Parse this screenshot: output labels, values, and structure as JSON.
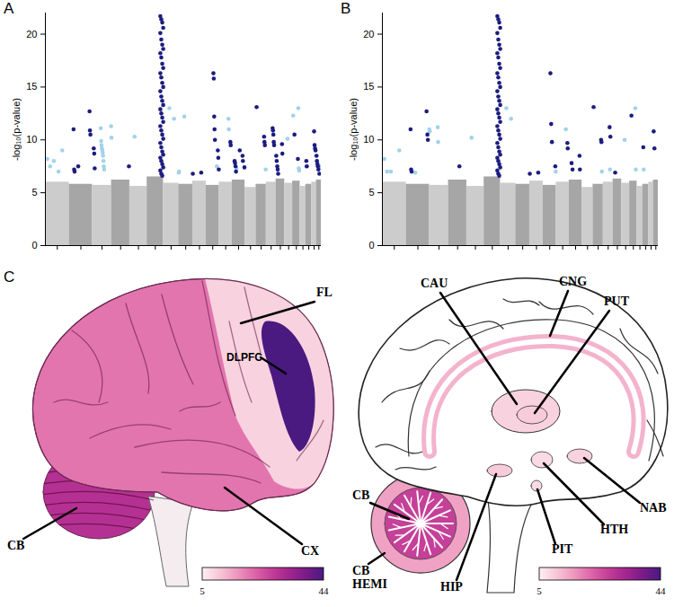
{
  "chart_data": [
    {
      "type": "scatter",
      "title": "A",
      "y_label": "-log₁₀(p-value)",
      "xlim": [
        0,
        2880
      ],
      "ylim": [
        0,
        22
      ],
      "xticks": [
        124.5,
        370.5,
        591,
        785.5,
        971.5,
        1147.5,
        1312.5,
        1465,
        1608.5,
        1747,
        1882.5,
        2017,
        2141.5,
        2252.5,
        2357,
        2453,
        2539.5,
        2620,
        2688.5,
        2749.5,
        2805,
        2854.5
      ],
      "yticks": [
        0,
        5,
        10,
        15,
        20
      ],
      "tick_labels": "y",
      "grid": false,
      "chromosome_bounds": [
        0,
        249,
        492,
        690,
        881,
        1062,
        1233,
        1392,
        1538,
        1679,
        1815,
        1950,
        2084,
        2199,
        2306,
        2408,
        2498,
        2581,
        2659,
        2718,
        2781,
        2829,
        2880
      ],
      "series": [
        {
          "type": "bar",
          "colors": [
            "#cccccc",
            "#a6a6a6",
            "#cccccc",
            "#a6a6a6",
            "#cccccc",
            "#a6a6a6",
            "#cccccc",
            "#a6a6a6",
            "#cccccc",
            "#a6a6a6",
            "#cccccc",
            "#a6a6a6",
            "#cccccc",
            "#a6a6a6",
            "#cccccc",
            "#a6a6a6",
            "#cccccc",
            "#a6a6a6",
            "#cccccc",
            "#a6a6a6",
            "#cccccc",
            "#a6a6a6"
          ],
          "values": [
            6.0,
            5.8,
            5.7,
            6.2,
            5.6,
            6.5,
            5.9,
            5.8,
            6.1,
            5.7,
            6.0,
            6.2,
            5.5,
            5.8,
            6.0,
            6.3,
            5.9,
            6.1,
            5.6,
            5.8,
            6.0,
            6.2
          ]
        },
        {
          "type": "scatter",
          "color": "#a3d2ea",
          "x": [
            20,
            49,
            88,
            137,
            176,
            578,
            582,
            586,
            590,
            594,
            598,
            602,
            606,
            610,
            614,
            686,
            690,
            931,
            1294,
            1343,
            1392,
            1396,
            1450,
            1790,
            1911,
            1915,
            1995,
            2300,
            2528,
            2587,
            2640,
            2645,
            2650,
            2732,
            2862
          ],
          "values": [
            8.2,
            7.5,
            8.0,
            7.0,
            9.0,
            11.1,
            9.9,
            9.5,
            9.2,
            9.0,
            8.8,
            8.5,
            8.0,
            7.5,
            7.2,
            11.3,
            10.2,
            10.3,
            13.0,
            12.0,
            6.9,
            7.0,
            12.2,
            7.5,
            12.0,
            11.0,
            7.3,
            7.2,
            10.1,
            12.3,
            13.0,
            7.3,
            7.1,
            7.5,
            7.5
          ]
        },
        {
          "type": "scatter",
          "color": "#1c1c80",
          "x": [
            294,
            300,
            305,
            343,
            461,
            465,
            470,
            505,
            510,
            515,
            872,
            1200,
            1210,
            1220,
            1230,
            1200,
            1210,
            1220,
            1230,
            1200,
            1210,
            1220,
            1230,
            1200,
            1210,
            1220,
            1230,
            1200,
            1210,
            1220,
            1230,
            1200,
            1210,
            1220,
            1230,
            1200,
            1210,
            1220,
            1230,
            1200,
            1210,
            1220,
            1230,
            1200,
            1210,
            1220,
            1230,
            1200,
            1210,
            1220,
            1539,
            1627,
            1754,
            1758,
            1762,
            1766,
            1770,
            1800,
            1805,
            1810,
            1931,
            1935,
            1975,
            1980,
            1985,
            1990,
            2029,
            2058,
            2062,
            2078,
            2205,
            2283,
            2287,
            2291,
            2372,
            2376,
            2380,
            2384,
            2388,
            2410,
            2415,
            2421,
            2425,
            2430,
            2470,
            2474,
            2600,
            2636,
            2724,
            2728,
            2805,
            2810,
            2815,
            2820,
            2830,
            2835,
            2840,
            2845,
            2850,
            2860
          ],
          "values": [
            11.0,
            7.2,
            7.0,
            7.5,
            12.7,
            10.9,
            10.5,
            9.2,
            8.7,
            7.3,
            7.5,
            21.7,
            21.4,
            21.1,
            20.6,
            20.1,
            19.5,
            19.0,
            18.6,
            18.2,
            17.8,
            17.2,
            16.8,
            16.3,
            15.9,
            15.4,
            15.0,
            14.6,
            14.1,
            13.7,
            13.3,
            12.9,
            12.5,
            12.1,
            11.7,
            11.3,
            10.9,
            10.5,
            10.1,
            9.7,
            9.3,
            8.9,
            8.6,
            8.3,
            8.0,
            7.7,
            7.4,
            7.1,
            6.8,
            6.6,
            6.8,
            6.9,
            16.3,
            15.8,
            12.2,
            11.0,
            10.0,
            9.0,
            8.3,
            7.2,
            9.8,
            9.5,
            8.0,
            7.8,
            7.5,
            7.0,
            9.0,
            8.5,
            8.0,
            7.4,
            13.1,
            10.3,
            9.8,
            9.5,
            11.1,
            10.9,
            10.5,
            9.8,
            9.5,
            8.5,
            8.0,
            7.5,
            7.2,
            6.8,
            9.6,
            8.7,
            10.5,
            8.2,
            8.0,
            7.5,
            10.8,
            9.5,
            9.2,
            9.0,
            8.5,
            8.0,
            7.7,
            7.5,
            7.2,
            6.8
          ]
        }
      ]
    },
    {
      "type": "scatter",
      "title": "B",
      "y_label": "-log₁₀(p-value)",
      "xlim": [
        0,
        2880
      ],
      "ylim": [
        0,
        22
      ],
      "xticks": [
        124.5,
        370.5,
        591,
        785.5,
        971.5,
        1147.5,
        1312.5,
        1465,
        1608.5,
        1747,
        1882.5,
        2017,
        2141.5,
        2252.5,
        2357,
        2453,
        2539.5,
        2620,
        2688.5,
        2749.5,
        2805,
        2854.5
      ],
      "yticks": [
        0,
        5,
        10,
        15,
        20
      ],
      "tick_labels": "y",
      "grid": false,
      "chromosome_bounds": [
        0,
        249,
        492,
        690,
        881,
        1062,
        1233,
        1392,
        1538,
        1679,
        1815,
        1950,
        2084,
        2199,
        2306,
        2408,
        2498,
        2581,
        2659,
        2718,
        2781,
        2829,
        2880
      ],
      "series": [
        {
          "type": "bar",
          "colors": [
            "#cccccc",
            "#a6a6a6",
            "#cccccc",
            "#a6a6a6",
            "#cccccc",
            "#a6a6a6",
            "#cccccc",
            "#a6a6a6",
            "#cccccc",
            "#a6a6a6",
            "#cccccc",
            "#a6a6a6",
            "#cccccc",
            "#a6a6a6",
            "#cccccc",
            "#a6a6a6",
            "#cccccc",
            "#a6a6a6",
            "#cccccc",
            "#a6a6a6",
            "#cccccc",
            "#a6a6a6"
          ],
          "values": [
            6.0,
            5.8,
            5.7,
            6.2,
            5.6,
            6.5,
            5.9,
            5.8,
            6.1,
            5.7,
            6.0,
            6.2,
            5.5,
            5.8,
            6.0,
            6.3,
            5.9,
            6.1,
            5.6,
            5.8,
            6.0,
            6.2
          ]
        },
        {
          "type": "scatter",
          "color": "#a3d2ea",
          "x": [
            20,
            49,
            88,
            176,
            343,
            490,
            495,
            578,
            582,
            931,
            1294,
            1343,
            1810,
            1915,
            2291,
            2376,
            2528,
            2640,
            2645,
            2728
          ],
          "values": [
            8.2,
            7.0,
            7.0,
            9.0,
            6.9,
            11.0,
            10.8,
            11.2,
            9.8,
            10.2,
            13.0,
            12.0,
            7.0,
            11.0,
            7.0,
            7.2,
            10.0,
            13.0,
            7.2,
            7.2
          ]
        },
        {
          "type": "scatter",
          "color": "#1c1c80",
          "x": [
            294,
            300,
            305,
            461,
            470,
            475,
            804,
            1200,
            1210,
            1220,
            1230,
            1200,
            1210,
            1220,
            1230,
            1200,
            1210,
            1220,
            1230,
            1200,
            1210,
            1220,
            1230,
            1200,
            1210,
            1220,
            1230,
            1200,
            1210,
            1220,
            1230,
            1200,
            1210,
            1220,
            1230,
            1200,
            1210,
            1220,
            1230,
            1200,
            1210,
            1220,
            1230,
            1200,
            1210,
            1220,
            1539,
            1627,
            1754,
            1762,
            1770,
            1805,
            1931,
            1935,
            1975,
            1985,
            2058,
            2062,
            2205,
            2283,
            2287,
            2372,
            2380,
            2430,
            2600,
            2724,
            2832,
            2840
          ],
          "values": [
            11.0,
            7.2,
            7.0,
            12.7,
            10.5,
            10.0,
            7.5,
            21.7,
            21.4,
            21.1,
            20.6,
            20.1,
            19.5,
            19.0,
            18.6,
            18.2,
            17.8,
            17.2,
            16.8,
            16.3,
            15.9,
            15.4,
            15.0,
            14.6,
            14.1,
            13.7,
            13.3,
            12.9,
            12.5,
            12.1,
            11.7,
            11.3,
            10.9,
            10.5,
            10.1,
            9.7,
            9.3,
            8.9,
            8.6,
            8.3,
            8.0,
            7.7,
            7.4,
            7.1,
            6.8,
            6.6,
            6.8,
            6.9,
            16.3,
            11.5,
            9.8,
            7.5,
            9.7,
            9.2,
            7.8,
            7.2,
            8.5,
            7.2,
            13.1,
            10.0,
            9.8,
            11.2,
            10.3,
            6.9,
            12.3,
            9.3,
            10.8,
            9.2
          ]
        }
      ]
    }
  ],
  "diagram": {
    "label": "C",
    "lateral": [
      {
        "label": "FL",
        "value": 9
      },
      {
        "label": "DLPFC",
        "value": 44
      },
      {
        "label": "CX",
        "value": 20
      },
      {
        "label": "CB",
        "value": 30
      }
    ],
    "sagittal": [
      {
        "label": "CAU",
        "value": 9
      },
      {
        "label": "CNG",
        "value": 13
      },
      {
        "label": "PUT",
        "value": 10
      },
      {
        "label": "NAB",
        "value": 9
      },
      {
        "label": "HTH",
        "value": 8
      },
      {
        "label": "PIT",
        "value": 8
      },
      {
        "label": "HIP",
        "value": 10
      },
      {
        "label": "CB",
        "value": 27
      },
      {
        "label": "CB HEMI",
        "value": 15
      }
    ],
    "colorbar": {
      "range": [
        5,
        44
      ],
      "ticks": [
        5,
        44
      ]
    }
  }
}
